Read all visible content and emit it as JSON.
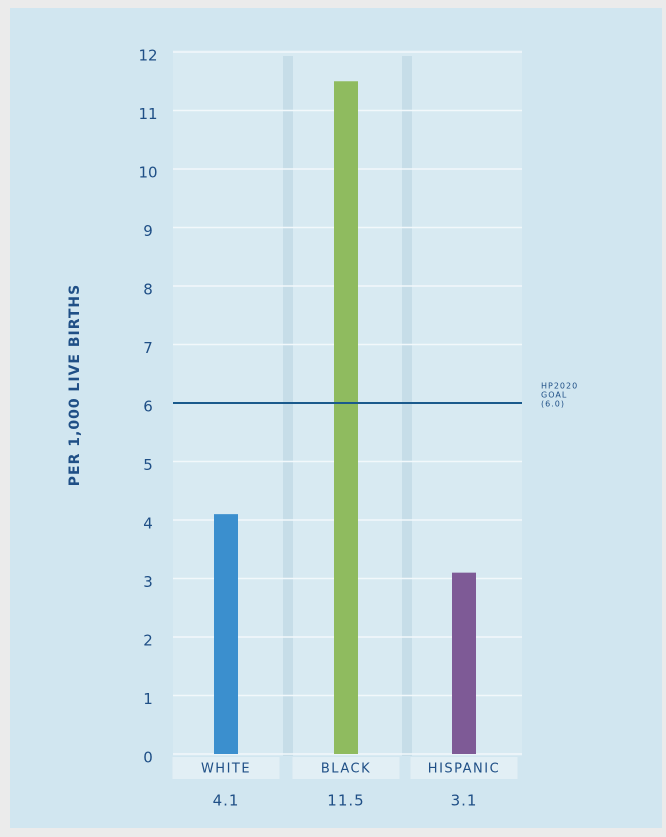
{
  "chart_data": {
    "type": "bar",
    "y_axis_label": "PER 1,000 LIVE BIRTHS",
    "categories": [
      "WHITE",
      "BLACK",
      "HISPANIC"
    ],
    "values": [
      4.1,
      11.5,
      3.1
    ],
    "colors": [
      "#3b8fce",
      "#8fbb5f",
      "#7e5a96"
    ],
    "ylim": [
      0,
      12
    ],
    "yticks": [
      0,
      1,
      2,
      3,
      4,
      5,
      6,
      7,
      8,
      9,
      10,
      11,
      12
    ],
    "grid": true,
    "reference_line": {
      "value": 6,
      "color": "#1a5a8c",
      "label": [
        "HP2020",
        "GOAL",
        "(6.0)"
      ]
    }
  }
}
